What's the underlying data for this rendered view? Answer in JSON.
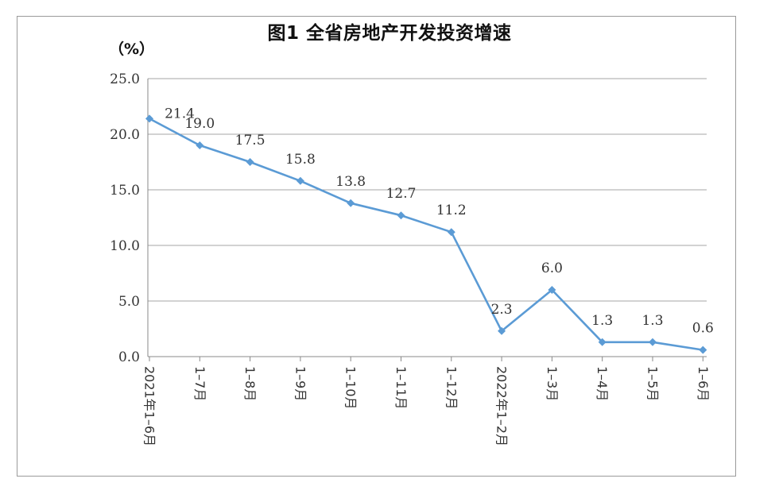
{
  "chart_data": {
    "type": "line",
    "title": "图1 全省房地产开发投资增速",
    "ylabel": "（%）",
    "xlabel": "",
    "categories": [
      "2021年1–6月",
      "1–7月",
      "1–8月",
      "1–9月",
      "1–10月",
      "1–11月",
      "1–12月",
      "2022年1–2月",
      "1–3月",
      "1–4月",
      "1–5月",
      "1–6月"
    ],
    "series": [
      {
        "values": [
          21.4,
          19.0,
          17.5,
          15.8,
          13.8,
          12.7,
          11.2,
          2.3,
          6.0,
          1.3,
          1.3,
          0.6
        ]
      }
    ],
    "value_labels": [
      "21.4",
      "19.0",
      "17.5",
      "15.8",
      "13.8",
      "12.7",
      "11.2",
      "2.3",
      "6.0",
      "1.3",
      "1.3",
      "0.6"
    ],
    "ylim": [
      0,
      25
    ],
    "yticks": [
      "0.0",
      "5.0",
      "10.0",
      "15.0",
      "20.0",
      "25.0"
    ],
    "grid": true,
    "legend": "none",
    "line_color": "#5b9bd5"
  }
}
